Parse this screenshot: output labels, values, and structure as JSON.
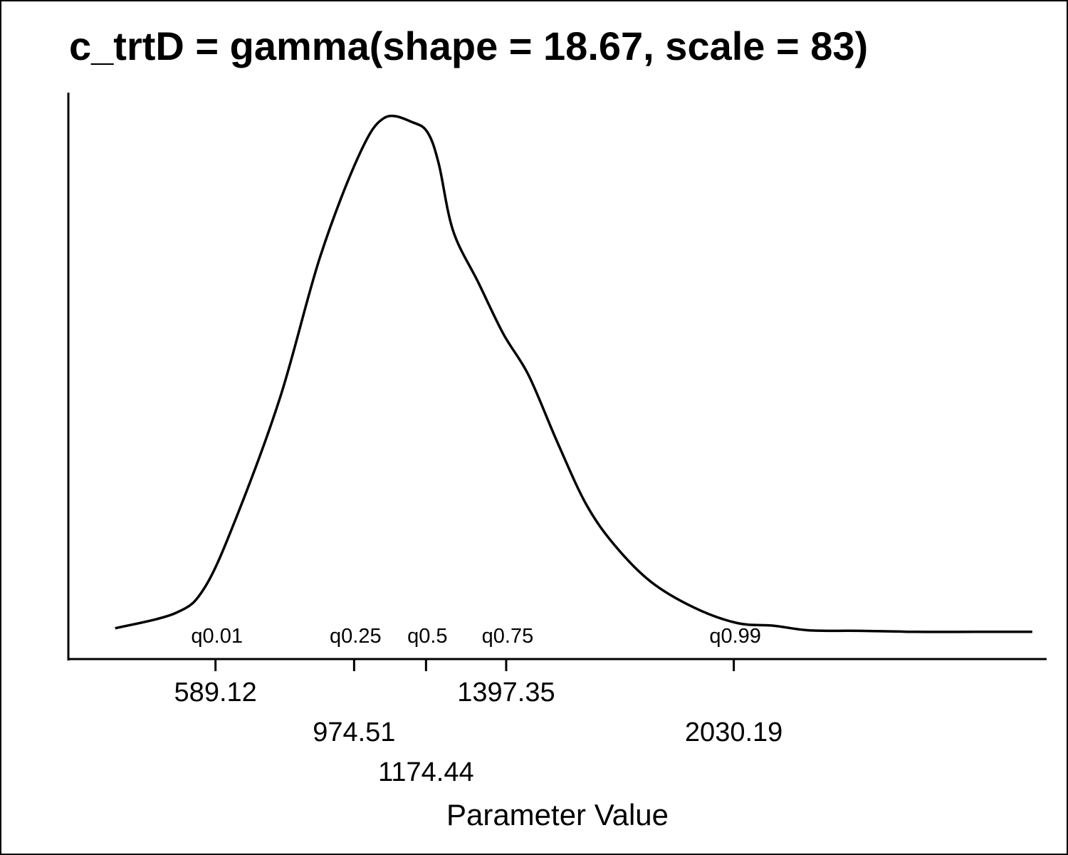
{
  "chart_data": {
    "type": "line",
    "title": "c_trtD = gamma(shape = 18.67, scale = 83)",
    "xlabel": "Parameter Value",
    "ylabel": "",
    "xlim": [
      180,
      2900
    ],
    "ylim": [
      0,
      1
    ],
    "grid": false,
    "legend": "none",
    "line_color": "#000000",
    "density_curve": {
      "x": [
        310,
        480,
        560,
        650,
        770,
        880,
        990,
        1060,
        1140,
        1180,
        1210,
        1250,
        1320,
        1390,
        1460,
        1540,
        1620,
        1700,
        1800,
        1920,
        2040,
        2140,
        2240,
        2380,
        2540,
        2700,
        2860
      ],
      "y": [
        0.01,
        0.04,
        0.09,
        0.23,
        0.46,
        0.73,
        0.93,
        1.0,
        0.99,
        0.97,
        0.91,
        0.78,
        0.68,
        0.58,
        0.5,
        0.37,
        0.25,
        0.17,
        0.1,
        0.05,
        0.02,
        0.015,
        0.006,
        0.005,
        0.003,
        0.003,
        0.003
      ]
    },
    "quantiles": [
      {
        "label": "q0.01",
        "value": 589.12,
        "tick_label": "589.12",
        "row": 0
      },
      {
        "label": "q0.25",
        "value": 974.51,
        "tick_label": "974.51",
        "row": 1
      },
      {
        "label": "q0.5",
        "value": 1174.44,
        "tick_label": "1174.44",
        "row": 2
      },
      {
        "label": "q0.75",
        "value": 1397.35,
        "tick_label": "1397.35",
        "row": 0
      },
      {
        "label": "q0.99",
        "value": 2030.19,
        "tick_label": "2030.19",
        "row": 1
      }
    ]
  }
}
